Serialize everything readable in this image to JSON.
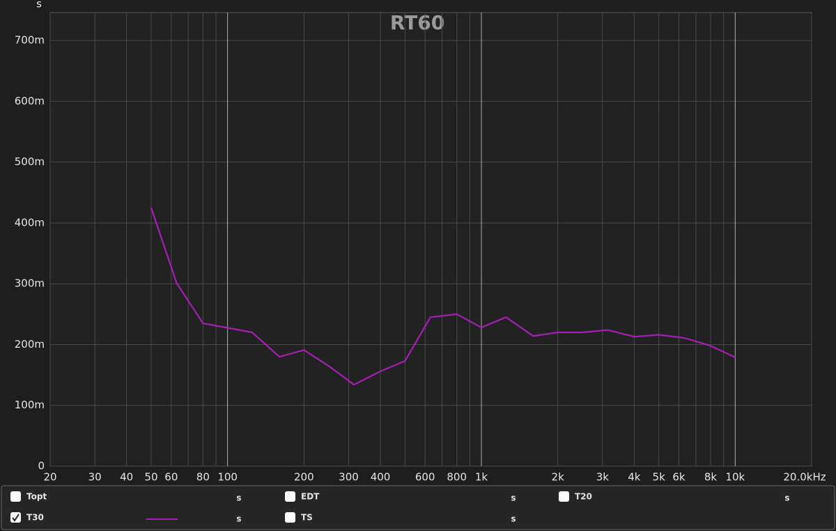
{
  "chart_data": {
    "type": "line",
    "title": "RT60",
    "y_label": "s",
    "x_scale": "log",
    "xlim": [
      20,
      20000
    ],
    "xticks": [
      20,
      30,
      40,
      50,
      60,
      80,
      100,
      200,
      300,
      400,
      600,
      800,
      {
        "value": 1000,
        "label": "1k"
      },
      {
        "value": 2000,
        "label": "2k"
      },
      {
        "value": 3000,
        "label": "3k"
      },
      {
        "value": 4000,
        "label": "4k"
      },
      {
        "value": 5000,
        "label": "5k"
      },
      {
        "value": 6000,
        "label": "6k"
      },
      {
        "value": 8000,
        "label": "8k"
      },
      {
        "value": 10000,
        "label": "10k"
      },
      {
        "value": 20000,
        "label": "20.0kHz"
      }
    ],
    "minor_xgrid": [
      70,
      90,
      500,
      700,
      900,
      7000,
      9000
    ],
    "ylim": [
      0,
      0.746
    ],
    "yticks": [
      0,
      {
        "value": 0.1,
        "label": "100m"
      },
      {
        "value": 0.2,
        "label": "200m"
      },
      {
        "value": 0.3,
        "label": "300m"
      },
      {
        "value": 0.4,
        "label": "400m"
      },
      {
        "value": 0.5,
        "label": "500m"
      },
      {
        "value": 0.6,
        "label": "600m"
      },
      {
        "value": 0.7,
        "label": "700m"
      }
    ],
    "grid": true,
    "x": [
      50,
      63,
      80,
      125,
      160,
      200,
      250,
      315,
      400,
      500,
      630,
      800,
      1000,
      1250,
      1600,
      2000,
      2500,
      3150,
      4000,
      5000,
      6300,
      8000,
      10000
    ],
    "series": [
      {
        "name": "T30",
        "color": "#a51fb3",
        "checked": true,
        "unit": "s",
        "values": [
          0.425,
          0.301,
          0.235,
          0.22,
          0.18,
          0.191,
          0.165,
          0.134,
          0.156,
          0.173,
          0.245,
          0.25,
          0.228,
          0.245,
          0.214,
          0.22,
          0.22,
          0.224,
          0.213,
          0.216,
          0.211,
          0.198,
          0.179
        ]
      }
    ],
    "other_curves": [
      {
        "name": "Topt",
        "color": "#2c9a2c",
        "checked": false,
        "unit": "s"
      },
      {
        "name": "EDT",
        "color": "#22a3ad",
        "checked": false,
        "unit": "s"
      },
      {
        "name": "T20",
        "color": "#f0f0f0",
        "checked": false,
        "unit": "s"
      },
      {
        "name": "TS",
        "color": "#c99a22",
        "checked": false,
        "unit": "s"
      }
    ]
  }
}
